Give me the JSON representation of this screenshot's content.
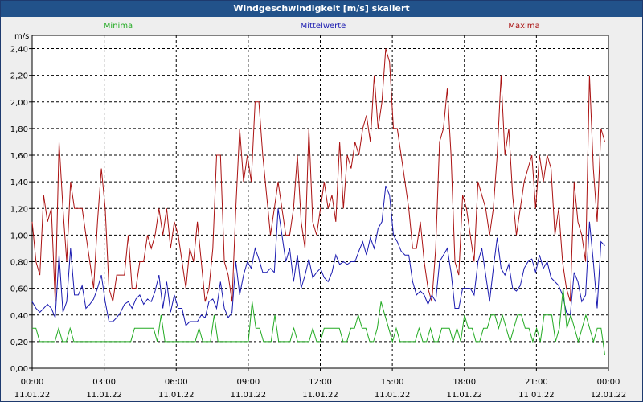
{
  "window": {
    "title": "Windgeschwindigkeit [m/s] skaliert"
  },
  "chart_data": {
    "type": "line",
    "title": "Windgeschwindigkeit [m/s] skaliert",
    "ylabel": "m/s",
    "xlabel": "",
    "ylim": [
      0,
      2.5
    ],
    "xlim": [
      0,
      24
    ],
    "yticks": [
      "0,00",
      "0,20",
      "0,40",
      "0,60",
      "0,80",
      "1,00",
      "1,20",
      "1,40",
      "1,60",
      "1,80",
      "2,00",
      "2,20",
      "2,40"
    ],
    "xticks": [
      {
        "time": "00:00",
        "date": "11.01.22"
      },
      {
        "time": "03:00",
        "date": "11.01.22"
      },
      {
        "time": "06:00",
        "date": "11.01.22"
      },
      {
        "time": "09:00",
        "date": "11.01.22"
      },
      {
        "time": "12:00",
        "date": "11.01.22"
      },
      {
        "time": "15:00",
        "date": "11.01.22"
      },
      {
        "time": "18:00",
        "date": "11.01.22"
      },
      {
        "time": "21:00",
        "date": "11.01.22"
      },
      {
        "time": "00:00",
        "date": "12.01.22"
      }
    ],
    "legend": [
      "Minima",
      "Mittelwerte",
      "Maxima"
    ],
    "grid": true,
    "series": [
      {
        "name": "Maxima",
        "color": "#aa1111",
        "values": [
          1.1,
          0.8,
          0.7,
          1.3,
          1.1,
          1.2,
          0.5,
          1.7,
          1.2,
          0.8,
          1.4,
          1.2,
          1.2,
          1.2,
          1.0,
          0.8,
          0.6,
          1.1,
          1.5,
          1.2,
          0.6,
          0.5,
          0.7,
          0.7,
          0.7,
          1.0,
          0.6,
          0.6,
          0.8,
          0.8,
          1.0,
          0.9,
          1.0,
          1.2,
          1.0,
          1.2,
          0.9,
          1.1,
          1.0,
          0.8,
          0.6,
          0.9,
          0.8,
          1.1,
          0.8,
          0.5,
          0.6,
          0.9,
          1.6,
          1.6,
          0.8,
          0.7,
          0.5,
          1.2,
          1.8,
          1.4,
          1.6,
          1.4,
          2.0,
          2.0,
          1.6,
          1.3,
          1.0,
          1.2,
          1.4,
          1.2,
          1.0,
          1.0,
          1.2,
          1.6,
          1.1,
          0.9,
          1.8,
          1.1,
          1.0,
          1.2,
          1.4,
          1.2,
          1.3,
          1.1,
          1.7,
          1.2,
          1.6,
          1.5,
          1.7,
          1.6,
          1.8,
          1.9,
          1.7,
          2.2,
          1.8,
          2.0,
          2.4,
          2.3,
          1.8,
          1.8,
          1.6,
          1.4,
          1.2,
          0.9,
          0.9,
          1.1,
          0.8,
          0.6,
          0.5,
          0.9,
          1.7,
          1.8,
          2.1,
          1.6,
          0.8,
          0.7,
          1.3,
          1.2,
          1.0,
          0.8,
          1.4,
          1.3,
          1.2,
          1.0,
          1.2,
          1.6,
          2.2,
          1.6,
          1.8,
          1.3,
          1.0,
          1.2,
          1.4,
          1.5,
          1.6,
          1.2,
          1.6,
          1.4,
          1.6,
          1.5,
          1.0,
          1.2,
          0.8,
          0.6,
          0.5,
          1.4,
          1.1,
          1.0,
          0.8,
          2.2,
          1.5,
          1.1,
          1.8,
          1.7
        ]
      },
      {
        "name": "Mittelwerte",
        "color": "#1a1ab0",
        "values": [
          0.5,
          0.45,
          0.42,
          0.45,
          0.48,
          0.45,
          0.38,
          0.85,
          0.42,
          0.5,
          0.9,
          0.55,
          0.55,
          0.62,
          0.45,
          0.48,
          0.52,
          0.6,
          0.7,
          0.5,
          0.35,
          0.35,
          0.38,
          0.42,
          0.48,
          0.5,
          0.45,
          0.52,
          0.55,
          0.48,
          0.52,
          0.5,
          0.58,
          0.7,
          0.45,
          0.65,
          0.42,
          0.55,
          0.45,
          0.45,
          0.32,
          0.35,
          0.35,
          0.35,
          0.4,
          0.38,
          0.5,
          0.52,
          0.45,
          0.65,
          0.45,
          0.38,
          0.42,
          0.8,
          0.55,
          0.7,
          0.8,
          0.75,
          0.9,
          0.82,
          0.72,
          0.72,
          0.75,
          0.72,
          1.2,
          1.0,
          0.8,
          0.9,
          0.65,
          0.85,
          0.6,
          0.7,
          0.82,
          0.68,
          0.72,
          0.75,
          0.68,
          0.65,
          0.72,
          0.85,
          0.78,
          0.8,
          0.78,
          0.8,
          0.8,
          0.88,
          0.95,
          0.85,
          0.98,
          0.9,
          1.05,
          1.1,
          1.37,
          1.3,
          1.0,
          0.95,
          0.88,
          0.85,
          0.85,
          0.65,
          0.55,
          0.58,
          0.55,
          0.48,
          0.55,
          0.5,
          0.8,
          0.85,
          0.9,
          0.72,
          0.45,
          0.45,
          0.6,
          0.6,
          0.6,
          0.55,
          0.8,
          0.9,
          0.7,
          0.5,
          0.75,
          0.98,
          0.75,
          0.7,
          0.78,
          0.6,
          0.58,
          0.62,
          0.75,
          0.8,
          0.82,
          0.72,
          0.85,
          0.75,
          0.8,
          0.68,
          0.65,
          0.62,
          0.55,
          0.42,
          0.4,
          0.72,
          0.65,
          0.5,
          0.55,
          1.1,
          0.8,
          0.45,
          0.95,
          0.92
        ]
      },
      {
        "name": "Minima",
        "color": "#22aa22",
        "values": [
          0.3,
          0.3,
          0.2,
          0.2,
          0.2,
          0.2,
          0.2,
          0.3,
          0.2,
          0.2,
          0.3,
          0.2,
          0.2,
          0.2,
          0.2,
          0.2,
          0.2,
          0.2,
          0.2,
          0.2,
          0.2,
          0.2,
          0.2,
          0.2,
          0.2,
          0.2,
          0.2,
          0.3,
          0.3,
          0.3,
          0.3,
          0.3,
          0.3,
          0.2,
          0.4,
          0.2,
          0.2,
          0.2,
          0.2,
          0.2,
          0.2,
          0.2,
          0.2,
          0.2,
          0.3,
          0.2,
          0.2,
          0.2,
          0.4,
          0.2,
          0.2,
          0.2,
          0.2,
          0.2,
          0.2,
          0.2,
          0.2,
          0.2,
          0.5,
          0.3,
          0.3,
          0.2,
          0.2,
          0.2,
          0.4,
          0.2,
          0.2,
          0.2,
          0.2,
          0.3,
          0.2,
          0.2,
          0.2,
          0.2,
          0.3,
          0.2,
          0.2,
          0.3,
          0.3,
          0.3,
          0.3,
          0.3,
          0.2,
          0.2,
          0.3,
          0.3,
          0.4,
          0.3,
          0.3,
          0.2,
          0.2,
          0.3,
          0.5,
          0.4,
          0.3,
          0.2,
          0.3,
          0.2,
          0.2,
          0.2,
          0.2,
          0.2,
          0.3,
          0.2,
          0.2,
          0.3,
          0.2,
          0.2,
          0.3,
          0.3,
          0.3,
          0.2,
          0.3,
          0.2,
          0.4,
          0.3,
          0.3,
          0.2,
          0.2,
          0.3,
          0.3,
          0.4,
          0.4,
          0.3,
          0.4,
          0.3,
          0.2,
          0.3,
          0.4,
          0.4,
          0.3,
          0.3,
          0.2,
          0.3,
          0.2,
          0.4,
          0.4,
          0.4,
          0.2,
          0.3,
          0.6,
          0.3,
          0.4,
          0.3,
          0.2,
          0.3,
          0.4,
          0.3,
          0.2,
          0.3,
          0.3,
          0.1
        ]
      }
    ]
  }
}
